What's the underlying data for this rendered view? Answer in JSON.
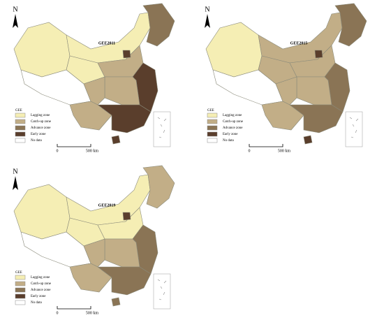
{
  "north": "N",
  "legend": {
    "title": "GEE",
    "items": [
      {
        "label": "Lagging zone",
        "color": "#f5eeb4"
      },
      {
        "label": "Catch-up zone",
        "color": "#c2ae87"
      },
      {
        "label": "Advance zone",
        "color": "#8a7455"
      },
      {
        "label": "Early zone",
        "color": "#5a3e2c"
      },
      {
        "label": "No data",
        "color": "#ffffff"
      }
    ]
  },
  "scale": {
    "start": "0",
    "end": "500 km"
  },
  "maps": [
    {
      "title": "GEE2011"
    },
    {
      "title": "GEE2015"
    },
    {
      "title": "GEE2019"
    }
  ]
}
